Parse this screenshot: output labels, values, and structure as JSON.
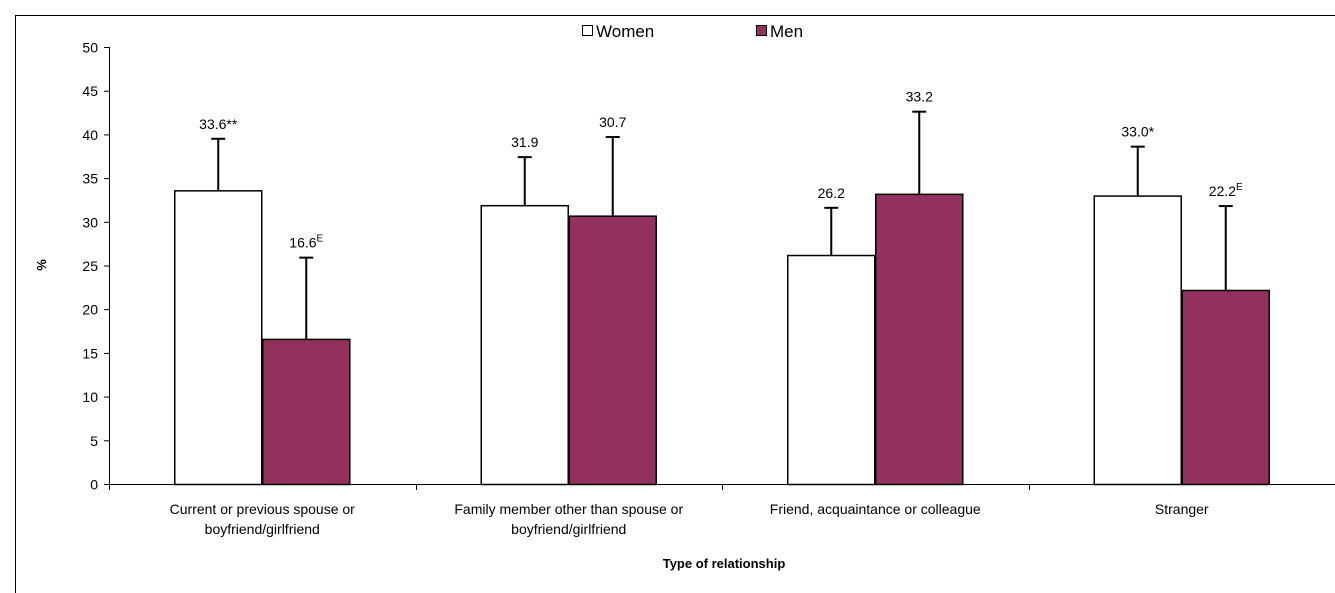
{
  "chart_data": {
    "type": "bar",
    "xlabel": "Type of relationship",
    "ylabel": "%",
    "ylim": [
      0,
      50
    ],
    "yticks": [
      0,
      5,
      10,
      15,
      20,
      25,
      30,
      35,
      40,
      45,
      50
    ],
    "grid": false,
    "legend_position": "top",
    "categories": [
      [
        "Current or previous spouse or",
        "boyfriend/girlfriend"
      ],
      [
        "Family member other than spouse or",
        "boyfriend/girlfriend"
      ],
      [
        "Friend, acquaintance or colleague"
      ],
      [
        "Stranger"
      ]
    ],
    "series": [
      {
        "name": "Women",
        "color": "#ffffff",
        "values": [
          33.6,
          31.9,
          26.2,
          33.0
        ],
        "error_upper": [
          39.5,
          37.4,
          31.6,
          38.6
        ],
        "labels": [
          {
            "text": "33.6**",
            "sup": ""
          },
          {
            "text": "31.9",
            "sup": ""
          },
          {
            "text": "26.2",
            "sup": ""
          },
          {
            "text": "33.0*",
            "sup": ""
          }
        ]
      },
      {
        "name": "Men",
        "color": "#93305e",
        "values": [
          16.6,
          30.7,
          33.2,
          22.2
        ],
        "error_upper": [
          25.9,
          39.7,
          42.6,
          31.8
        ],
        "labels": [
          {
            "text": "16.6",
            "sup": "E"
          },
          {
            "text": "30.7",
            "sup": ""
          },
          {
            "text": "33.2",
            "sup": ""
          },
          {
            "text": "22.2",
            "sup": "E"
          }
        ]
      }
    ]
  }
}
